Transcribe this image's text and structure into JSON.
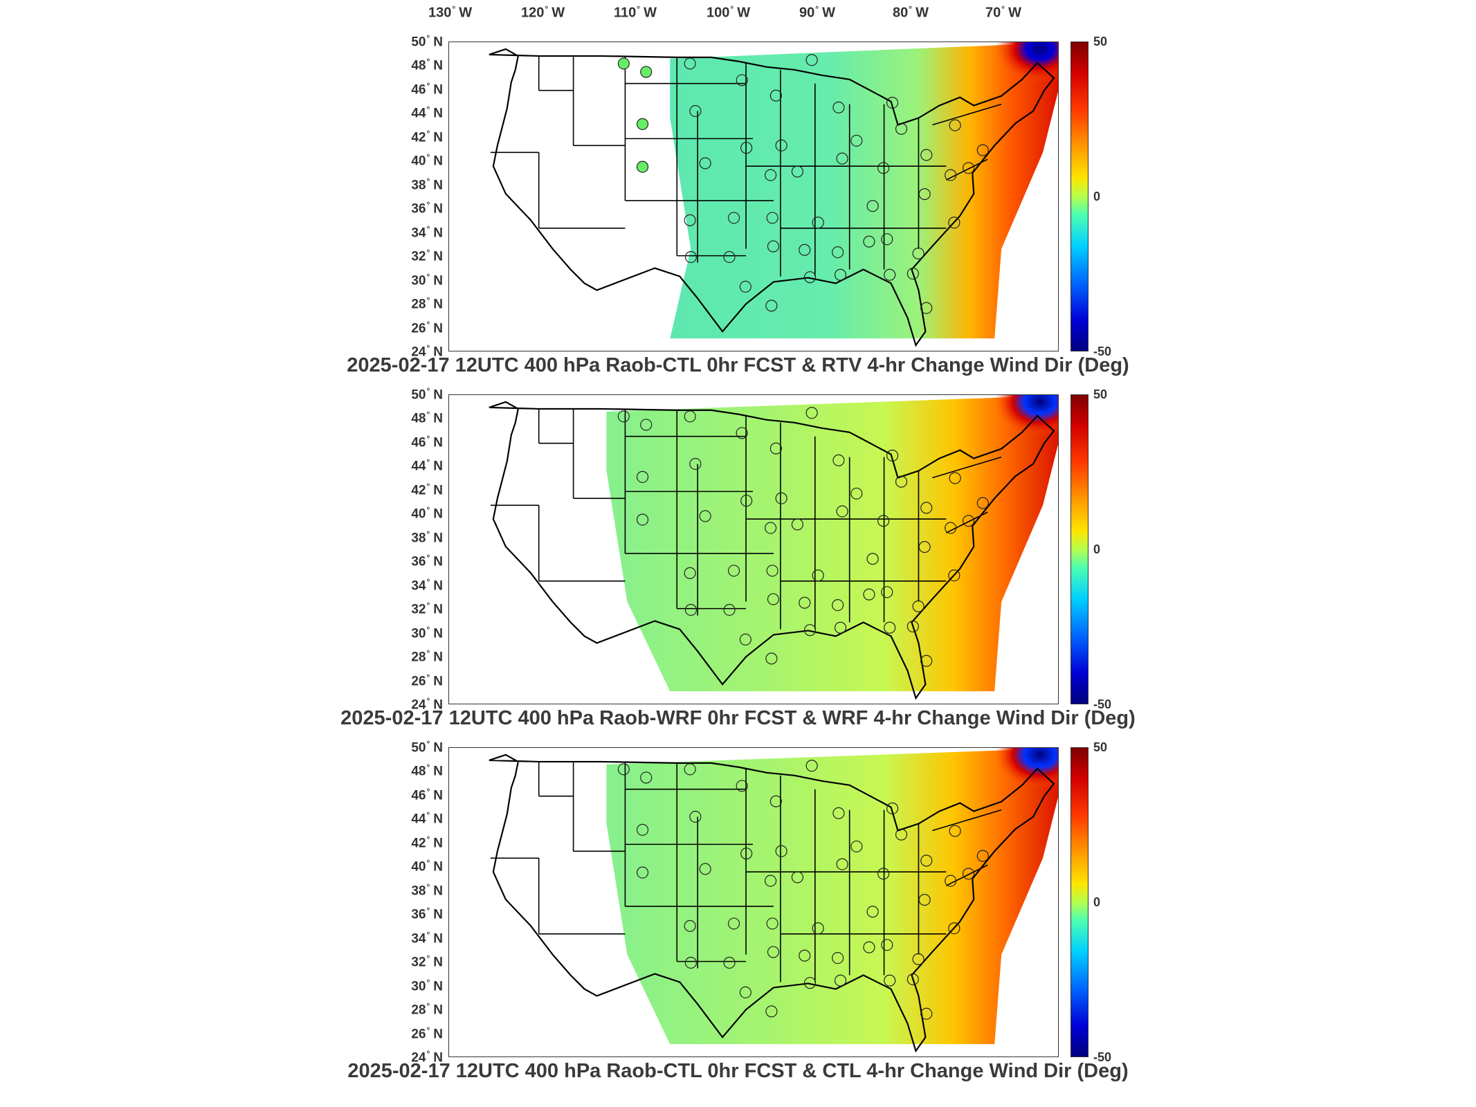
{
  "lon_labels": [
    {
      "deg": "130",
      "dir": "W"
    },
    {
      "deg": "120",
      "dir": "W"
    },
    {
      "deg": "110",
      "dir": "W"
    },
    {
      "deg": "100",
      "dir": "W"
    },
    {
      "deg": "90",
      "dir": "W"
    },
    {
      "deg": "80",
      "dir": "W"
    },
    {
      "deg": "70",
      "dir": "W"
    }
  ],
  "lat_labels": [
    {
      "deg": "50",
      "dir": "N"
    },
    {
      "deg": "48",
      "dir": "N"
    },
    {
      "deg": "46",
      "dir": "N"
    },
    {
      "deg": "44",
      "dir": "N"
    },
    {
      "deg": "42",
      "dir": "N"
    },
    {
      "deg": "40",
      "dir": "N"
    },
    {
      "deg": "38",
      "dir": "N"
    },
    {
      "deg": "36",
      "dir": "N"
    },
    {
      "deg": "34",
      "dir": "N"
    },
    {
      "deg": "32",
      "dir": "N"
    },
    {
      "deg": "30",
      "dir": "N"
    },
    {
      "deg": "28",
      "dir": "N"
    },
    {
      "deg": "26",
      "dir": "N"
    },
    {
      "deg": "24",
      "dir": "N"
    }
  ],
  "colorbar": {
    "max": "50",
    "mid": "0",
    "min": "-50"
  },
  "colors": {
    "positive": "#d40000",
    "zero": "#b4ff4c",
    "negative": "#0000d8"
  },
  "panels": [
    {
      "title": "2025-02-17 12UTC 400 hPa Raob-CTL 0hr FCST & RTV 4-hr Change Wind Dir (Deg)"
    },
    {
      "title": "2025-02-17 12UTC 400 hPa Raob-WRF 0hr FCST & WRF 4-hr Change Wind Dir (Deg)"
    },
    {
      "title": "2025-02-17 12UTC 400 hPa Raob-CTL 0hr FCST & CTL 4-hr Change Wind Dir (Deg)"
    }
  ],
  "raob_stations": [
    {
      "lon": -114.0,
      "lat": 48.2
    },
    {
      "lon": -106.6,
      "lat": 48.2
    },
    {
      "lon": -111.5,
      "lat": 47.5
    },
    {
      "lon": -100.8,
      "lat": 46.8
    },
    {
      "lon": -97.0,
      "lat": 45.5
    },
    {
      "lon": -106.0,
      "lat": 44.2
    },
    {
      "lon": -90.0,
      "lat": 44.5
    },
    {
      "lon": -84.0,
      "lat": 44.9
    },
    {
      "lon": -93.0,
      "lat": 48.5
    },
    {
      "lon": -111.9,
      "lat": 43.1
    },
    {
      "lon": -100.3,
      "lat": 41.1
    },
    {
      "lon": -96.4,
      "lat": 41.3
    },
    {
      "lon": -88.0,
      "lat": 41.7
    },
    {
      "lon": -83.0,
      "lat": 42.7
    },
    {
      "lon": -77.0,
      "lat": 43.0
    },
    {
      "lon": -111.9,
      "lat": 39.5
    },
    {
      "lon": -104.9,
      "lat": 39.8
    },
    {
      "lon": -97.6,
      "lat": 38.8
    },
    {
      "lon": -94.6,
      "lat": 39.1
    },
    {
      "lon": -89.6,
      "lat": 40.2
    },
    {
      "lon": -85.0,
      "lat": 39.4
    },
    {
      "lon": -80.2,
      "lat": 40.5
    },
    {
      "lon": -77.5,
      "lat": 38.8
    },
    {
      "lon": -75.5,
      "lat": 39.4
    },
    {
      "lon": -73.9,
      "lat": 40.9
    },
    {
      "lon": -106.6,
      "lat": 35.0
    },
    {
      "lon": -101.7,
      "lat": 35.2
    },
    {
      "lon": -97.4,
      "lat": 35.2
    },
    {
      "lon": -92.3,
      "lat": 34.8
    },
    {
      "lon": -86.2,
      "lat": 36.2
    },
    {
      "lon": -80.4,
      "lat": 37.2
    },
    {
      "lon": -77.1,
      "lat": 34.8
    },
    {
      "lon": -106.5,
      "lat": 31.9
    },
    {
      "lon": -102.2,
      "lat": 31.9
    },
    {
      "lon": -97.3,
      "lat": 32.8
    },
    {
      "lon": -93.8,
      "lat": 32.5
    },
    {
      "lon": -90.1,
      "lat": 32.3
    },
    {
      "lon": -86.6,
      "lat": 33.2
    },
    {
      "lon": -84.6,
      "lat": 33.4
    },
    {
      "lon": -81.1,
      "lat": 32.2
    },
    {
      "lon": -100.4,
      "lat": 29.4
    },
    {
      "lon": -97.5,
      "lat": 27.8
    },
    {
      "lon": -93.2,
      "lat": 30.2
    },
    {
      "lon": -89.8,
      "lat": 30.4
    },
    {
      "lon": -84.3,
      "lat": 30.4
    },
    {
      "lon": -81.7,
      "lat": 30.5
    },
    {
      "lon": -80.2,
      "lat": 27.6
    }
  ]
}
